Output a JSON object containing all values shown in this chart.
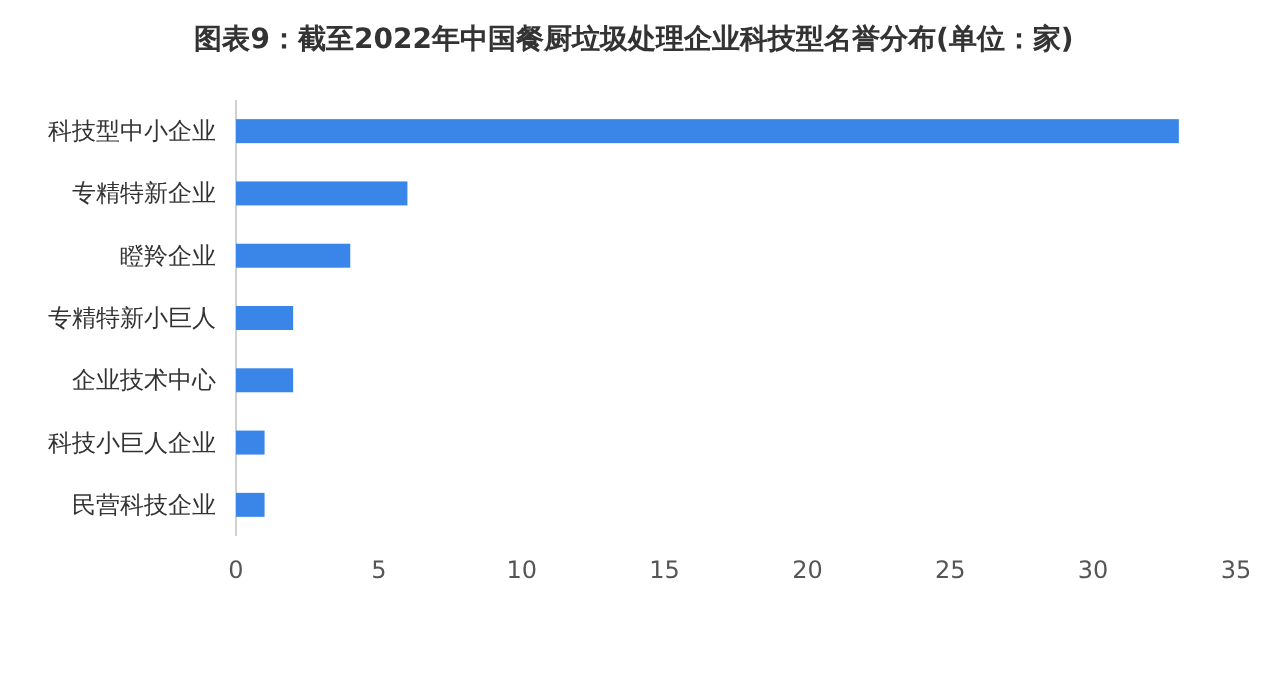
{
  "chart_data": {
    "type": "bar",
    "orientation": "horizontal",
    "title": "图表9：截至2022年中国餐厨垃圾处理企业科技型名誉分布(单位：家)",
    "categories": [
      "科技型中小企业",
      "专精特新企业",
      "瞪羚企业",
      "专精特新小巨人",
      "企业技术中心",
      "科技小巨人企业",
      "民营科技企业"
    ],
    "values": [
      33,
      6,
      4,
      2,
      2,
      1,
      1
    ],
    "color": "#3a86e8",
    "xlim": [
      0,
      35
    ],
    "xticks": [
      0,
      5,
      10,
      15,
      20,
      25,
      30,
      35
    ]
  }
}
